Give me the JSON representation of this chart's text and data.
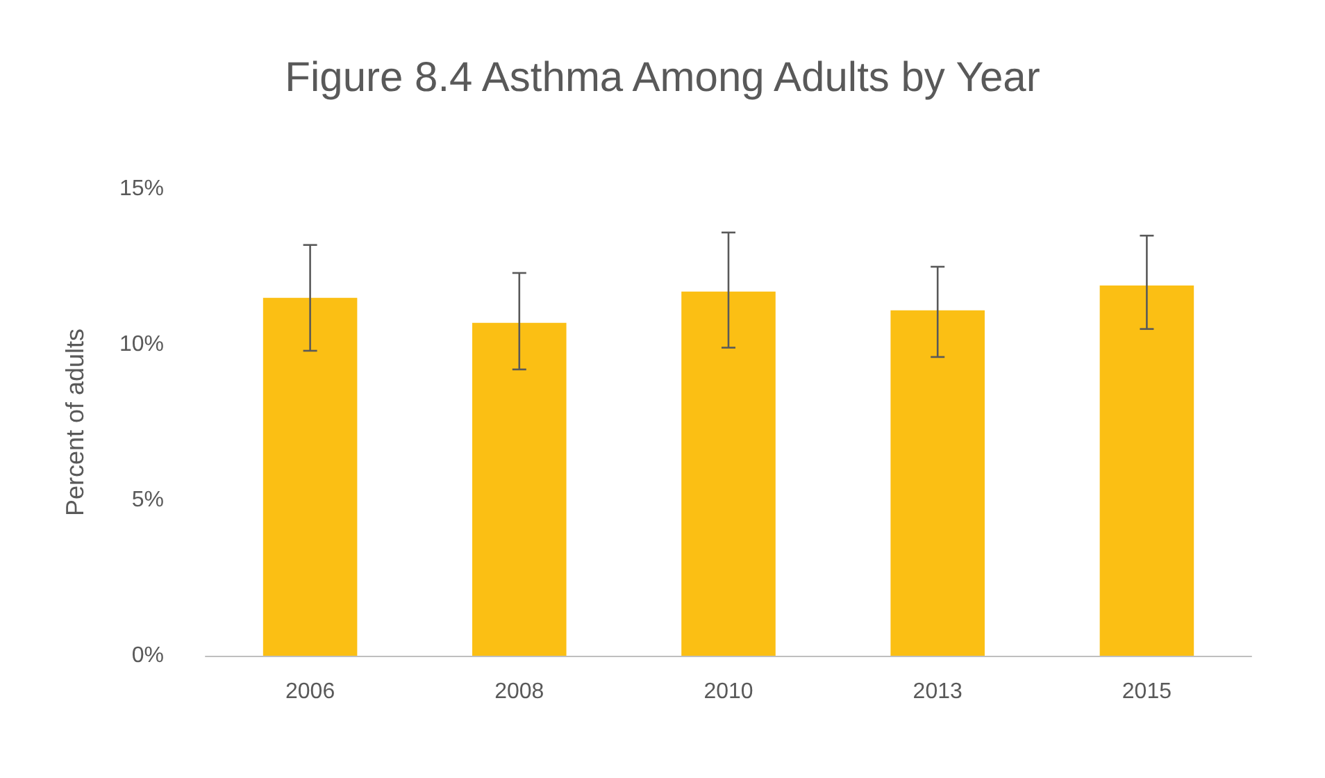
{
  "chart_data": {
    "type": "bar",
    "title": "Figure 8.4 Asthma Among Adults by Year",
    "ylabel": "Percent of adults",
    "categories": [
      "2006",
      "2008",
      "2010",
      "2013",
      "2015"
    ],
    "values": [
      11.5,
      10.7,
      11.7,
      11.1,
      11.9
    ],
    "errors": [
      [
        9.8,
        13.2
      ],
      [
        9.2,
        12.3
      ],
      [
        9.9,
        13.6
      ],
      [
        9.6,
        12.5
      ],
      [
        10.5,
        13.5
      ]
    ],
    "color": "#fbbf14",
    "ylim": [
      0,
      15
    ],
    "yticks": [
      {
        "value": 0,
        "label": "0%"
      },
      {
        "value": 5,
        "label": "5%"
      },
      {
        "value": 10,
        "label": "10%"
      },
      {
        "value": 15,
        "label": "15%"
      }
    ],
    "grid": false
  }
}
